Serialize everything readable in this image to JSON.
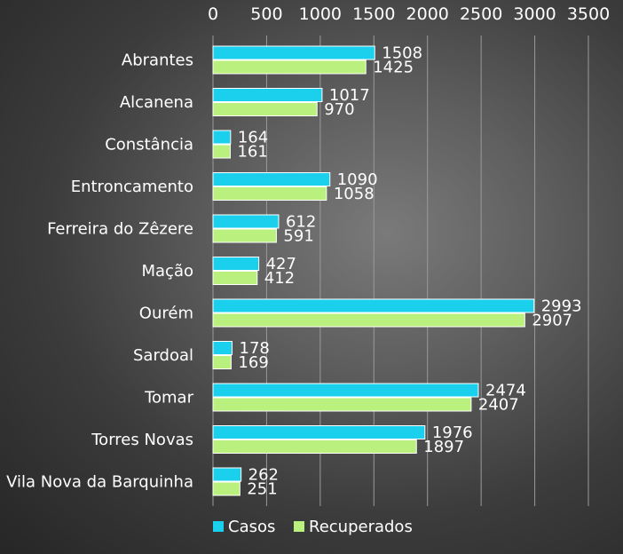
{
  "chart_data": {
    "type": "bar",
    "orientation": "horizontal",
    "categories": [
      "Abrantes",
      "Alcanena",
      "Constância",
      "Entroncamento",
      "Ferreira do Zêzere",
      "Mação",
      "Ourém",
      "Sardoal",
      "Tomar",
      "Torres Novas",
      "Vila Nova da Barquinha"
    ],
    "series": [
      {
        "name": "Casos",
        "color": "#1ad0ec",
        "values": [
          1508,
          1017,
          164,
          1090,
          612,
          427,
          2993,
          178,
          2474,
          1976,
          262
        ]
      },
      {
        "name": "Recuperados",
        "color": "#b9f07e",
        "values": [
          1425,
          970,
          161,
          1058,
          591,
          412,
          2907,
          169,
          2407,
          1897,
          251
        ]
      }
    ],
    "xaxis_position": "top",
    "xlim": [
      0,
      3500
    ],
    "xticks": [
      0,
      500,
      1000,
      1500,
      2000,
      2500,
      3000,
      3500
    ],
    "grid": true,
    "data_labels": true,
    "legend": "bottom",
    "title": "",
    "xlabel": "",
    "ylabel": ""
  }
}
